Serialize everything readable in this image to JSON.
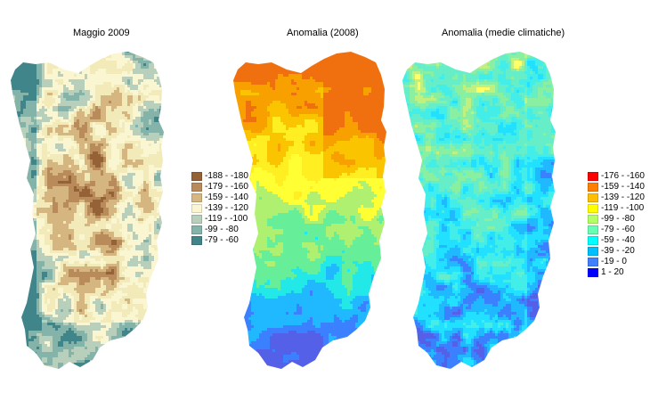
{
  "maps": [
    {
      "title": "Maggio 2009",
      "palette": [
        "#956137",
        "#b98a5a",
        "#d5b580",
        "#f2eab8",
        "#fbf6d2",
        "#b8cfbc",
        "#84b3a9",
        "#3f8589"
      ]
    },
    {
      "title": "Anomalia (2008)",
      "palette": [
        "#f07010",
        "#f7a000",
        "#fbc400",
        "#ffee22",
        "#ffff33",
        "#b0f070",
        "#66ee99",
        "#22e8e8",
        "#20b8ff",
        "#3a80ff",
        "#5560e8"
      ]
    },
    {
      "title": "Anomalia (medie climatiche)",
      "palette": [
        "#ffff66",
        "#c0f080",
        "#88f0a0",
        "#66eec8",
        "#44eee8",
        "#22e0ff",
        "#20b8ff",
        "#3a80ff",
        "#5560e8"
      ]
    }
  ],
  "legend_left": [
    {
      "label": "-188 - -180",
      "color": "#956137"
    },
    {
      "label": "-179 - -160",
      "color": "#b98a5a"
    },
    {
      "label": "-159 - -140",
      "color": "#d5b580"
    },
    {
      "label": "-139 - -120",
      "color": "#fbf6d2"
    },
    {
      "label": "-119 - -100",
      "color": "#b8cfbc"
    },
    {
      "label": "-99 - -80",
      "color": "#84b3a9"
    },
    {
      "label": "-79 - -60",
      "color": "#3f8589"
    }
  ],
  "legend_right": [
    {
      "label": "-176 - -160",
      "color": "#ff0000"
    },
    {
      "label": "-159 - -140",
      "color": "#ff7f00"
    },
    {
      "label": "-139 - -120",
      "color": "#ffbf00"
    },
    {
      "label": "-119 - -100",
      "color": "#ffff00"
    },
    {
      "label": "-99 - -80",
      "color": "#b3ff66"
    },
    {
      "label": "-79 - -60",
      "color": "#66ffb3"
    },
    {
      "label": "-59 - -40",
      "color": "#00ffff"
    },
    {
      "label": "-39 - -20",
      "color": "#00bfff"
    },
    {
      "label": "-19 - 0",
      "color": "#4080ff"
    },
    {
      "label": "1 - 20",
      "color": "#0000ff"
    }
  ]
}
